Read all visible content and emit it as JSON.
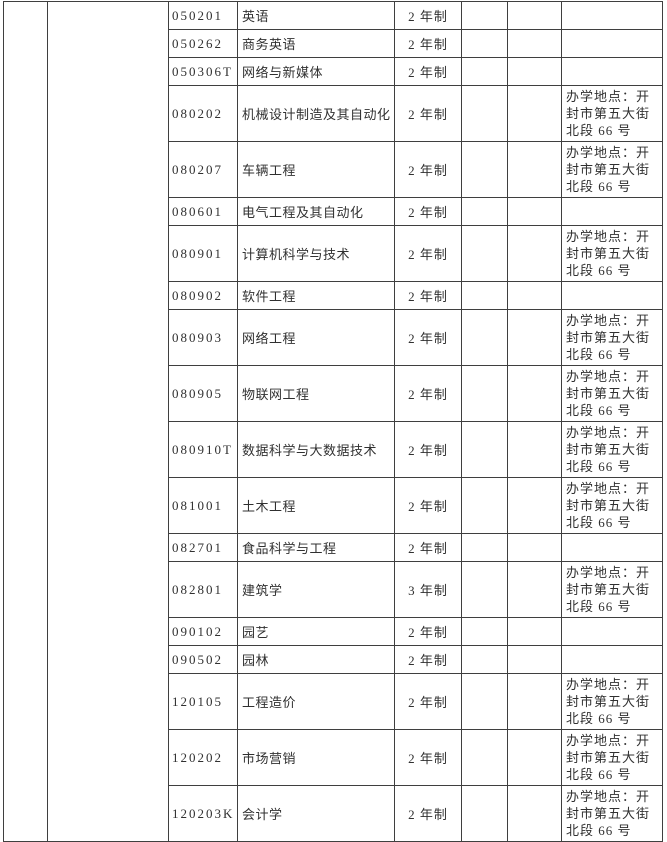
{
  "page": {
    "background_color": "#ffffff",
    "grid_color": "#3f3f3f",
    "text_color": "#303030"
  },
  "table": {
    "rows": [
      {
        "code": "050201",
        "name": "英语",
        "duration": "2 年制",
        "location": ""
      },
      {
        "code": "050262",
        "name": "商务英语",
        "duration": "2 年制",
        "location": ""
      },
      {
        "code": "050306T",
        "name": "网络与新媒体",
        "duration": "2 年制",
        "location": ""
      },
      {
        "code": "080202",
        "name": "机械设计制造及其自动化",
        "duration": "2 年制",
        "location": "办学地点：开\n封市第五大街\n北段 66 号"
      },
      {
        "code": "080207",
        "name": "车辆工程",
        "duration": "2 年制",
        "location": "办学地点：开\n封市第五大街\n北段 66 号"
      },
      {
        "code": "080601",
        "name": "电气工程及其自动化",
        "duration": "2 年制",
        "location": ""
      },
      {
        "code": "080901",
        "name": "计算机科学与技术",
        "duration": "2 年制",
        "location": "办学地点：开\n封市第五大街\n北段 66 号"
      },
      {
        "code": "080902",
        "name": "软件工程",
        "duration": "2 年制",
        "location": ""
      },
      {
        "code": "080903",
        "name": "网络工程",
        "duration": "2 年制",
        "location": "办学地点：开\n封市第五大街\n北段 66 号"
      },
      {
        "code": "080905",
        "name": "物联网工程",
        "duration": "2 年制",
        "location": "办学地点：开\n封市第五大街\n北段 66 号"
      },
      {
        "code": "080910T",
        "name": "数据科学与大数据技术",
        "duration": "2 年制",
        "location": "办学地点：开\n封市第五大街\n北段 66 号"
      },
      {
        "code": "081001",
        "name": "土木工程",
        "duration": "2 年制",
        "location": "办学地点：开\n封市第五大街\n北段 66 号"
      },
      {
        "code": "082701",
        "name": "食品科学与工程",
        "duration": "2 年制",
        "location": ""
      },
      {
        "code": "082801",
        "name": "建筑学",
        "duration": "3 年制",
        "location": "办学地点：开\n封市第五大街\n北段 66 号"
      },
      {
        "code": "090102",
        "name": "园艺",
        "duration": "2 年制",
        "location": ""
      },
      {
        "code": "090502",
        "name": "园林",
        "duration": "2 年制",
        "location": ""
      },
      {
        "code": "120105",
        "name": "工程造价",
        "duration": "2 年制",
        "location": "办学地点：开\n封市第五大街\n北段 66 号"
      },
      {
        "code": "120202",
        "name": "市场营销",
        "duration": "2 年制",
        "location": "办学地点：开\n封市第五大街\n北段 66 号"
      },
      {
        "code": "120203K",
        "name": "会计学",
        "duration": "2 年制",
        "location": "办学地点：开\n封市第五大街\n北段 66 号"
      }
    ]
  }
}
